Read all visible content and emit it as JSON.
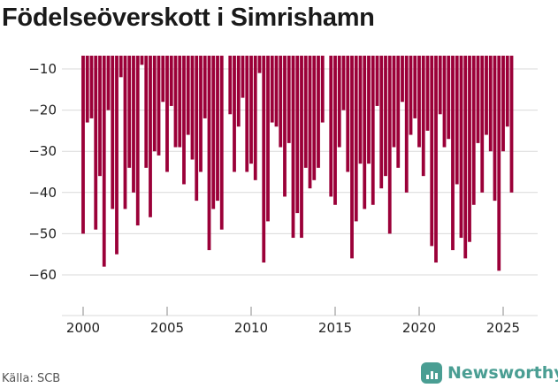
{
  "chart_data": {
    "type": "bar",
    "title": "Födelseöverskott i Simrishamn",
    "xlabel": "",
    "ylabel": "",
    "ylim": [
      -68,
      -7
    ],
    "y_ticks": [
      "−10",
      "−20",
      "−30",
      "−40",
      "−50",
      "−60"
    ],
    "y_tick_values": [
      -10,
      -20,
      -30,
      -40,
      -50,
      -60
    ],
    "x_ticks": [
      "2000",
      "2005",
      "2010",
      "2015",
      "2020",
      "2025"
    ],
    "x_tick_values": [
      2000,
      2005,
      2010,
      2015,
      2020,
      2025
    ],
    "bar_color": "#9b0038",
    "values": [
      -50,
      -23,
      -22,
      -49,
      -36,
      -58,
      -20,
      -44,
      -55,
      -12,
      -44,
      -34,
      -40,
      -48,
      -9,
      -34,
      -46,
      -30,
      -31,
      -18,
      -35,
      -19,
      -29,
      -29,
      -38,
      -26,
      -32,
      -42,
      -35,
      -22,
      -54,
      -44,
      -42,
      -49,
      -21,
      -35,
      -24,
      -17,
      -35,
      -33,
      -37,
      -11,
      -57,
      -47,
      -23,
      -24,
      -29,
      -41,
      -28,
      -51,
      -45,
      -51,
      -34,
      -39,
      -37,
      -34,
      -23,
      -41,
      -43,
      -29,
      -20,
      -35,
      -56,
      -47,
      -33,
      -44,
      -33,
      -43,
      -19,
      -39,
      -36,
      -50,
      -29,
      -34,
      -18,
      -40,
      -26,
      -22,
      -29,
      -36,
      -25,
      -53,
      -57,
      -21,
      -29,
      -27,
      -54,
      -38,
      -51,
      -56,
      -52,
      -43,
      -28,
      -40,
      -26,
      -30,
      -42,
      -59,
      -30,
      -24,
      -40
    ],
    "years": [
      2000.0,
      2000.25,
      2000.5,
      2000.75,
      2001.0,
      2001.25,
      2001.5,
      2001.75,
      2002.0,
      2002.25,
      2002.5,
      2002.75,
      2003.0,
      2003.25,
      2003.5,
      2003.75,
      2004.0,
      2004.25,
      2004.5,
      2004.75,
      2005.0,
      2005.25,
      2005.5,
      2005.75,
      2006.0,
      2006.25,
      2006.5,
      2006.75,
      2007.0,
      2007.25,
      2007.5,
      2007.75,
      2008.0,
      2008.25,
      2008.75,
      2009.0,
      2009.25,
      2009.5,
      2009.75,
      2010.0,
      2010.25,
      2010.5,
      2010.75,
      2011.0,
      2011.25,
      2011.5,
      2011.75,
      2012.0,
      2012.25,
      2012.5,
      2012.75,
      2013.0,
      2013.25,
      2013.5,
      2013.75,
      2014.0,
      2014.25,
      2014.75,
      2015.0,
      2015.25,
      2015.5,
      2015.75,
      2016.0,
      2016.25,
      2016.5,
      2016.75,
      2017.0,
      2017.25,
      2017.5,
      2017.75,
      2018.0,
      2018.25,
      2018.5,
      2018.75,
      2019.0,
      2019.25,
      2019.5,
      2019.75,
      2020.0,
      2020.25,
      2020.5,
      2020.75,
      2021.0,
      2021.25,
      2021.5,
      2021.75,
      2022.0,
      2022.25,
      2022.5,
      2022.75,
      2023.0,
      2023.25,
      2023.5,
      2023.75,
      2024.0,
      2024.25,
      2024.5,
      2024.75,
      2025.0,
      2025.25,
      2025.5
    ]
  },
  "source": "Källa: SCB",
  "brand": "Newsworthy"
}
